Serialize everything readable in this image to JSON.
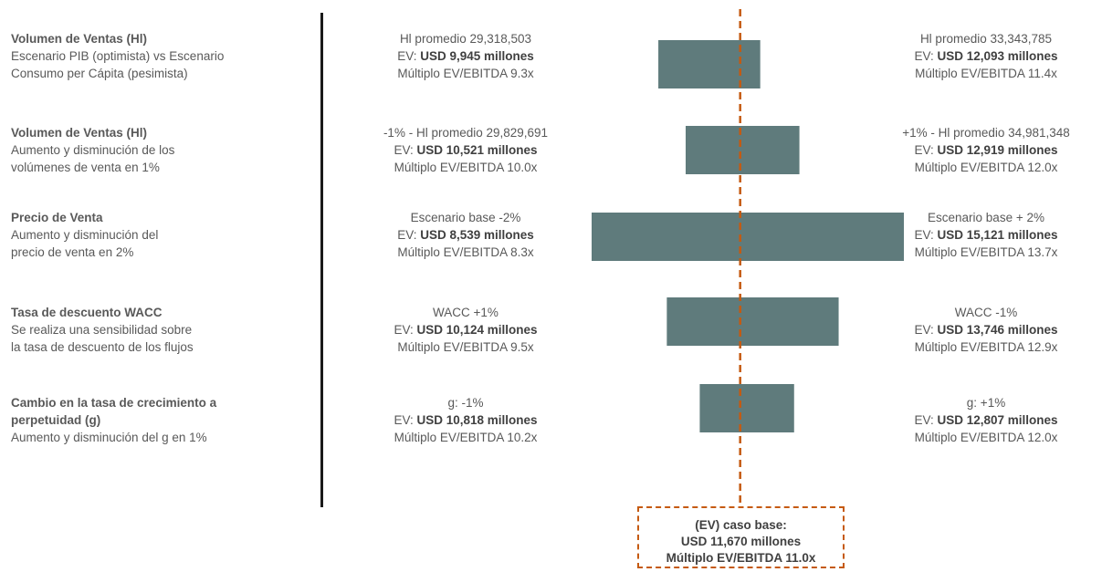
{
  "factors": [
    {
      "title": "Volumen de Ventas (Hl)",
      "desc": [
        "Escenario PIB (optimista) vs Escenario",
        "Consumo per Cápita (pesimista)"
      ],
      "low": {
        "line1": "Hl promedio 29,318,503",
        "ev_prefix": "EV: ",
        "ev_value": "USD 9,945 millones",
        "multiple": "Múltiplo EV/EBITDA 9.3x"
      },
      "high": {
        "line1": "Hl promedio 33,343,785",
        "ev_prefix": "EV: ",
        "ev_value": "USD 12,093 millones",
        "multiple": "Múltiplo EV/EBITDA 11.4x"
      }
    },
    {
      "title": "Volumen de Ventas (Hl)",
      "desc": [
        "Aumento  y disminución de los",
        "volúmenes de venta en 1%"
      ],
      "low": {
        "line1": "-1% - Hl promedio 29,829,691",
        "ev_prefix": "EV: ",
        "ev_value": "USD 10,521 millones",
        "multiple": "Múltiplo EV/EBITDA 10.0x"
      },
      "high": {
        "line1": "+1% - Hl promedio 34,981,348",
        "ev_prefix": "EV: ",
        "ev_value": "USD 12,919 millones",
        "multiple": "Múltiplo EV/EBITDA 12.0x"
      }
    },
    {
      "title": "Precio de Venta",
      "desc": [
        "Aumento  y disminución del",
        "precio de venta en 2%"
      ],
      "low": {
        "line1": "Escenario base -2%",
        "ev_prefix": "EV: ",
        "ev_value": "USD 8,539 millones",
        "multiple": "Múltiplo EV/EBITDA 8.3x"
      },
      "high": {
        "line1": "Escenario base + 2%",
        "ev_prefix": "EV: ",
        "ev_value": "USD 15,121 millones",
        "multiple": "Múltiplo EV/EBITDA 13.7x"
      }
    },
    {
      "title": "Tasa de descuento WACC",
      "desc": [
        "Se realiza una sensibilidad sobre",
        "la tasa de descuento de los flujos"
      ],
      "low": {
        "line1": "WACC +1%",
        "ev_prefix": "EV: ",
        "ev_value": "USD 10,124 millones",
        "multiple": "Múltiplo EV/EBITDA 9.5x"
      },
      "high": {
        "line1": "WACC -1%",
        "ev_prefix": "EV: ",
        "ev_value": "USD 13,746 millones",
        "multiple": "Múltiplo EV/EBITDA 12.9x"
      }
    },
    {
      "title": "Cambio en la tasa de crecimiento a perpetuidad (g)",
      "desc": [
        "Aumento  y disminución del g  en 1%"
      ],
      "low": {
        "line1": "g: -1%",
        "ev_prefix": "EV: ",
        "ev_value": "USD 10,818 millones",
        "multiple": "Múltiplo EV/EBITDA 10.2x"
      },
      "high": {
        "line1": "g: +1%",
        "ev_prefix": "EV: ",
        "ev_value": "USD 12,807 millones",
        "multiple": "Múltiplo EV/EBITDA 12.0x"
      }
    }
  ],
  "base_case": {
    "line1": "(EV) caso base:",
    "line2": "USD  11,670 millones",
    "line3": "Múltiplo EV/EBITDA 11.0x"
  },
  "colors": {
    "bar": "#5f7b7c",
    "base_line": "#c55a11",
    "text": "#595959"
  },
  "chart_data": {
    "type": "bar",
    "orientation": "horizontal-tornado",
    "unit": "USD millones",
    "base_value": 11670,
    "categories": [
      "Volumen de Ventas (Hl)",
      "Volumen de Ventas (Hl)",
      "Precio de Venta",
      "Tasa de descuento WACC",
      "Cambio en la tasa de crecimiento a perpetuidad (g)"
    ],
    "series": [
      {
        "values": [
          9945,
          10521,
          8539,
          10124,
          10818
        ]
      },
      {
        "values": [
          12093,
          12919,
          15121,
          13746,
          12807
        ]
      }
    ],
    "xlim": [
      8539,
      15121
    ],
    "grid": false,
    "legend": "none"
  }
}
